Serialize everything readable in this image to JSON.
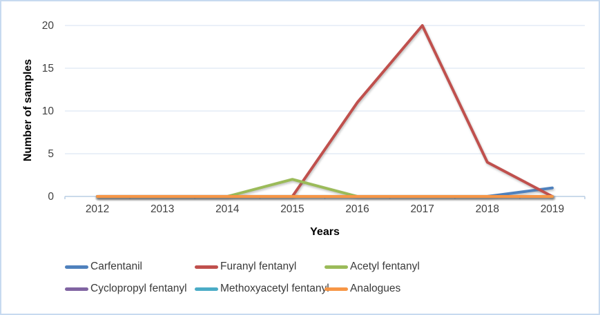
{
  "frame": {
    "background": "#ffffff",
    "border_color": "#c7daf0"
  },
  "chart_data": {
    "type": "line",
    "title": "",
    "xlabel": "Years",
    "ylabel": "Number of samples",
    "x": [
      2012,
      2013,
      2014,
      2015,
      2016,
      2017,
      2018,
      2019
    ],
    "ylim": [
      0,
      20
    ],
    "yticks": [
      0,
      5,
      10,
      15,
      20
    ],
    "grid": "horizontal",
    "gridline_color": "#dde7f3",
    "axis_color": "#b9cde4",
    "legend_position": "bottom",
    "series": [
      {
        "name": "Carfentanil",
        "color": "#4F81BD",
        "values": [
          0,
          0,
          0,
          0,
          0,
          0,
          0,
          1
        ]
      },
      {
        "name": "Furanyl fentanyl",
        "color": "#C0504D",
        "values": [
          0,
          0,
          0,
          0,
          11,
          20,
          4,
          0
        ]
      },
      {
        "name": "Acetyl fentanyl",
        "color": "#9BBB59",
        "values": [
          0,
          0,
          0,
          2,
          0,
          0,
          0,
          0
        ]
      },
      {
        "name": "Cyclopropyl fentanyl",
        "color": "#8064A2",
        "values": [
          0,
          0,
          0,
          0,
          0,
          0,
          0,
          0
        ]
      },
      {
        "name": "Methoxyacetyl fentanyl",
        "color": "#4BACC6",
        "values": [
          0,
          0,
          0,
          0,
          0,
          0,
          0,
          0
        ]
      },
      {
        "name": "Analogues",
        "color": "#F79646",
        "values": [
          0,
          0,
          0,
          0,
          0,
          0,
          0,
          0
        ]
      }
    ]
  }
}
